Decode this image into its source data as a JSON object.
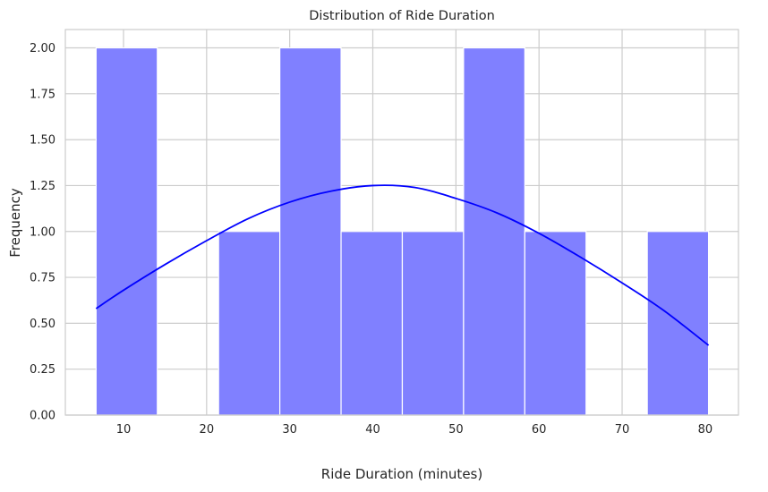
{
  "chart_data": {
    "type": "bar",
    "title": "Distribution of Ride Duration",
    "xlabel": "Ride Duration (minutes)",
    "ylabel": "Frequency",
    "xlim": [
      3.0,
      84.0
    ],
    "ylim": [
      0,
      2.1
    ],
    "x_ticks": [
      10,
      20,
      30,
      40,
      50,
      60,
      70,
      80
    ],
    "y_ticks": [
      0.0,
      0.25,
      0.5,
      0.75,
      1.0,
      1.25,
      1.5,
      1.75,
      2.0
    ],
    "x_tick_labels": [
      "10",
      "20",
      "30",
      "40",
      "50",
      "60",
      "70",
      "80"
    ],
    "y_tick_labels": [
      "0.00",
      "0.25",
      "0.50",
      "0.75",
      "1.00",
      "1.25",
      "1.50",
      "1.75",
      "2.00"
    ],
    "grid": true,
    "bins": [
      {
        "start": 6.7,
        "end": 14.07,
        "count": 2
      },
      {
        "start": 14.07,
        "end": 21.44,
        "count": 0
      },
      {
        "start": 21.44,
        "end": 28.81,
        "count": 1
      },
      {
        "start": 28.81,
        "end": 36.18,
        "count": 2
      },
      {
        "start": 36.18,
        "end": 43.55,
        "count": 1
      },
      {
        "start": 43.55,
        "end": 50.92,
        "count": 1
      },
      {
        "start": 50.92,
        "end": 58.29,
        "count": 2
      },
      {
        "start": 58.29,
        "end": 65.66,
        "count": 1
      },
      {
        "start": 65.66,
        "end": 73.03,
        "count": 0
      },
      {
        "start": 73.03,
        "end": 80.4,
        "count": 1
      }
    ],
    "kde": {
      "x": [
        6.7,
        10,
        15,
        20,
        25,
        30,
        35,
        40,
        45,
        50,
        55,
        60,
        65,
        70,
        75,
        80.4
      ],
      "y": [
        0.58,
        0.68,
        0.82,
        0.95,
        1.07,
        1.16,
        1.22,
        1.25,
        1.24,
        1.18,
        1.1,
        0.99,
        0.86,
        0.72,
        0.57,
        0.38
      ]
    },
    "colors": {
      "bar_fill": "#8080ff",
      "bar_edge": "#ffffff",
      "kde_line": "#0000ff",
      "grid": "#cccccc",
      "axes_edge": "#cccccc"
    }
  }
}
